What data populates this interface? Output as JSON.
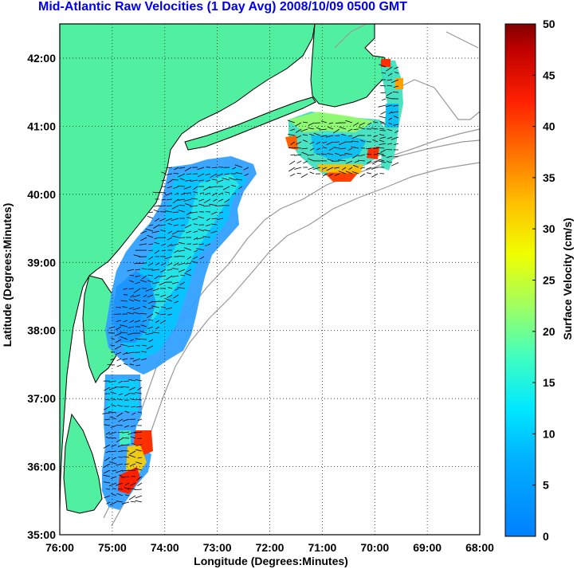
{
  "map": {
    "title": "Mid-Atlantic Raw Velocities (1 Day Avg) 2008/10/09 0500 GMT",
    "xlabel": "Longitude (Degrees:Minutes)",
    "ylabel": "Latitude (Degrees:Minutes)",
    "x_ticks": [
      "76:00",
      "75:00",
      "74:00",
      "73:00",
      "72:00",
      "71:00",
      "70:00",
      "69:00",
      "68:00"
    ],
    "y_ticks": [
      "42:00",
      "41:00",
      "40:00",
      "39:00",
      "38:00",
      "37:00",
      "36:00",
      "35:00"
    ],
    "colorbar": {
      "label": "Surface Velocity (cm/s)",
      "ticks": [
        "50",
        "45",
        "40",
        "35",
        "30",
        "25",
        "20",
        "15",
        "10",
        "5",
        "0"
      ],
      "range": [
        0,
        50
      ],
      "colormap": "jet"
    },
    "colors": {
      "land": "#50f0a0",
      "coast": "#000000",
      "bathymetry": "#999999",
      "grid": "#000000",
      "title": "#0000ee",
      "arrows": "#000000"
    }
  }
}
